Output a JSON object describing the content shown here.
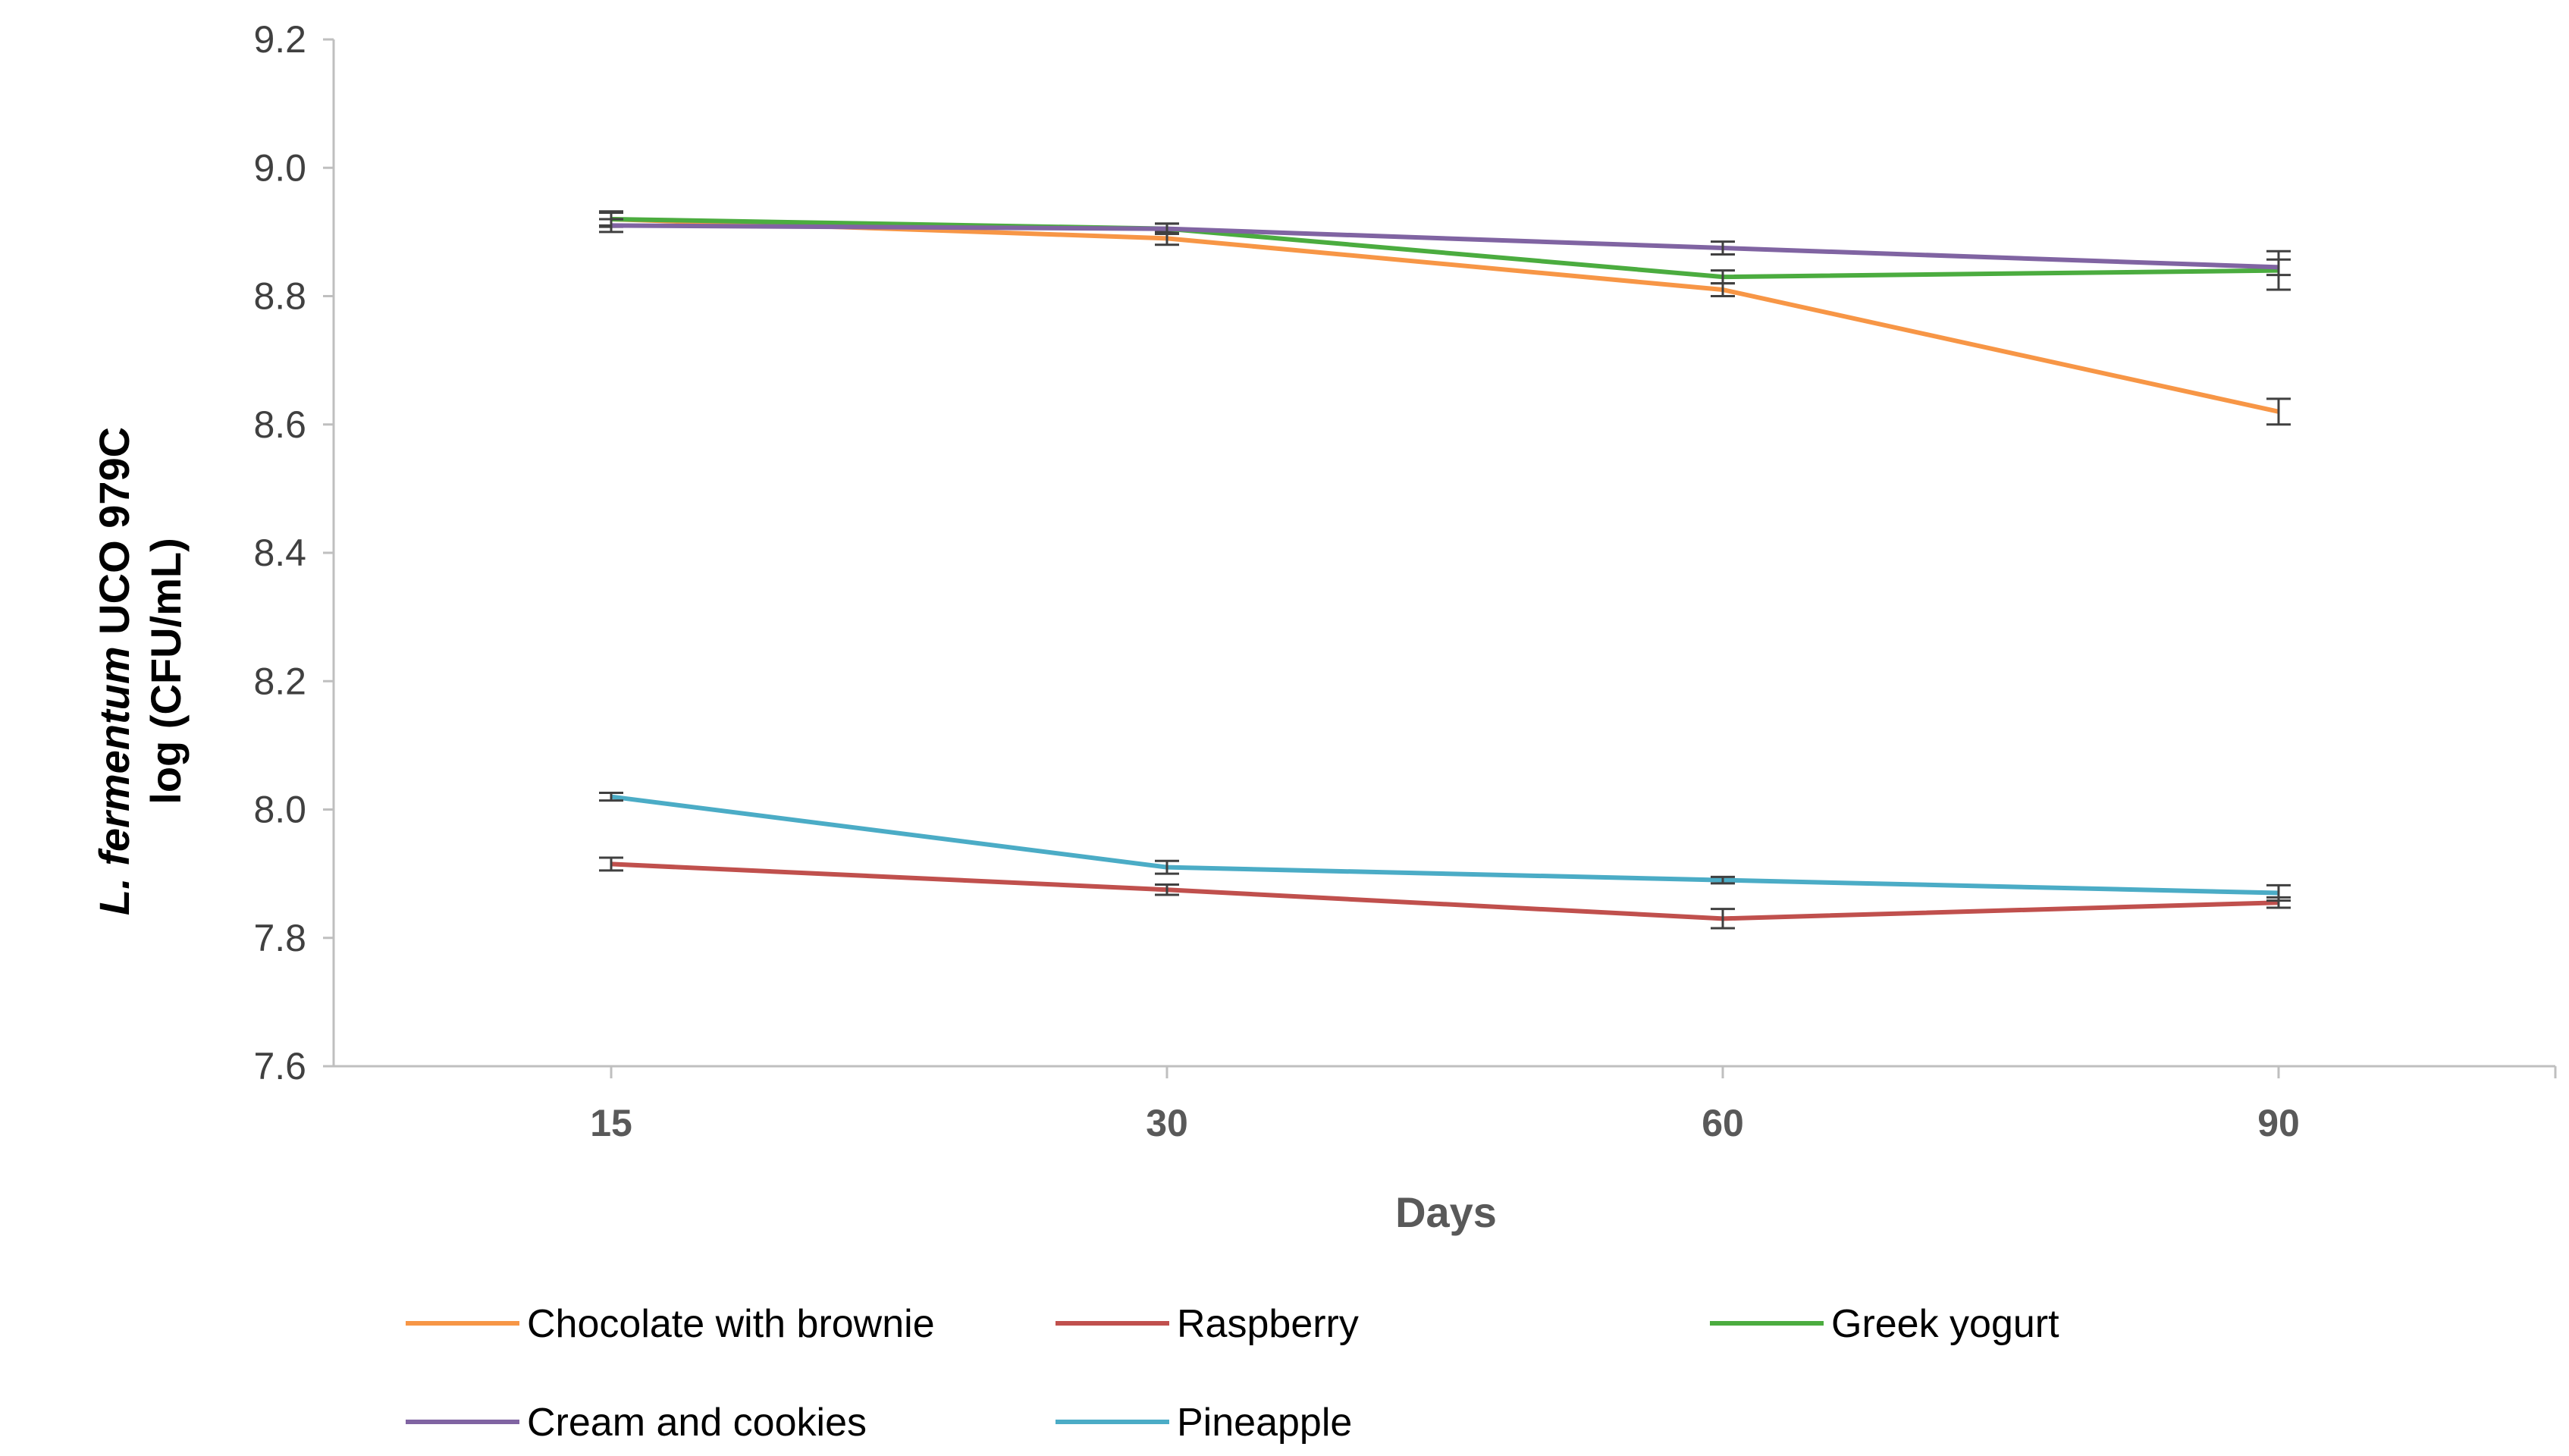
{
  "chart_data": {
    "type": "line",
    "title": "",
    "xlabel": "Days",
    "ylabel_italic": "L. fermentum",
    "ylabel_rest": " UCO 979C",
    "ylabel_line2": "log (CFU/mL)",
    "categories": [
      "15",
      "30",
      "60",
      "90"
    ],
    "ylim": [
      7.6,
      9.2
    ],
    "yticks": [
      "7.6",
      "7.8",
      "8.0",
      "8.2",
      "8.4",
      "8.6",
      "8.8",
      "9.0",
      "9.2"
    ],
    "grid": false,
    "legend_position": "bottom",
    "series": [
      {
        "name": "Chocolate with brownie",
        "color": "#f79646",
        "values": [
          8.92,
          8.89,
          8.81,
          8.62
        ],
        "errors": [
          0.01,
          0.01,
          0.01,
          0.02
        ]
      },
      {
        "name": "Raspberry",
        "color": "#c0504d",
        "values": [
          7.915,
          7.875,
          7.83,
          7.855
        ],
        "errors": [
          0.01,
          0.008,
          0.015,
          0.008
        ]
      },
      {
        "name": "Greek yogurt",
        "color": "#4bac3f",
        "values": [
          8.92,
          8.905,
          8.83,
          8.84
        ],
        "errors": [
          0.012,
          0.008,
          0.01,
          0.03
        ]
      },
      {
        "name": "Cream and cookies",
        "color": "#8064a2",
        "values": [
          8.91,
          8.905,
          8.875,
          8.845
        ],
        "errors": [
          0.01,
          0.008,
          0.01,
          0.012
        ]
      },
      {
        "name": "Pineapple",
        "color": "#4bacc6",
        "values": [
          8.02,
          7.91,
          7.89,
          7.87
        ],
        "errors": [
          0.006,
          0.01,
          0.005,
          0.012
        ]
      }
    ]
  }
}
